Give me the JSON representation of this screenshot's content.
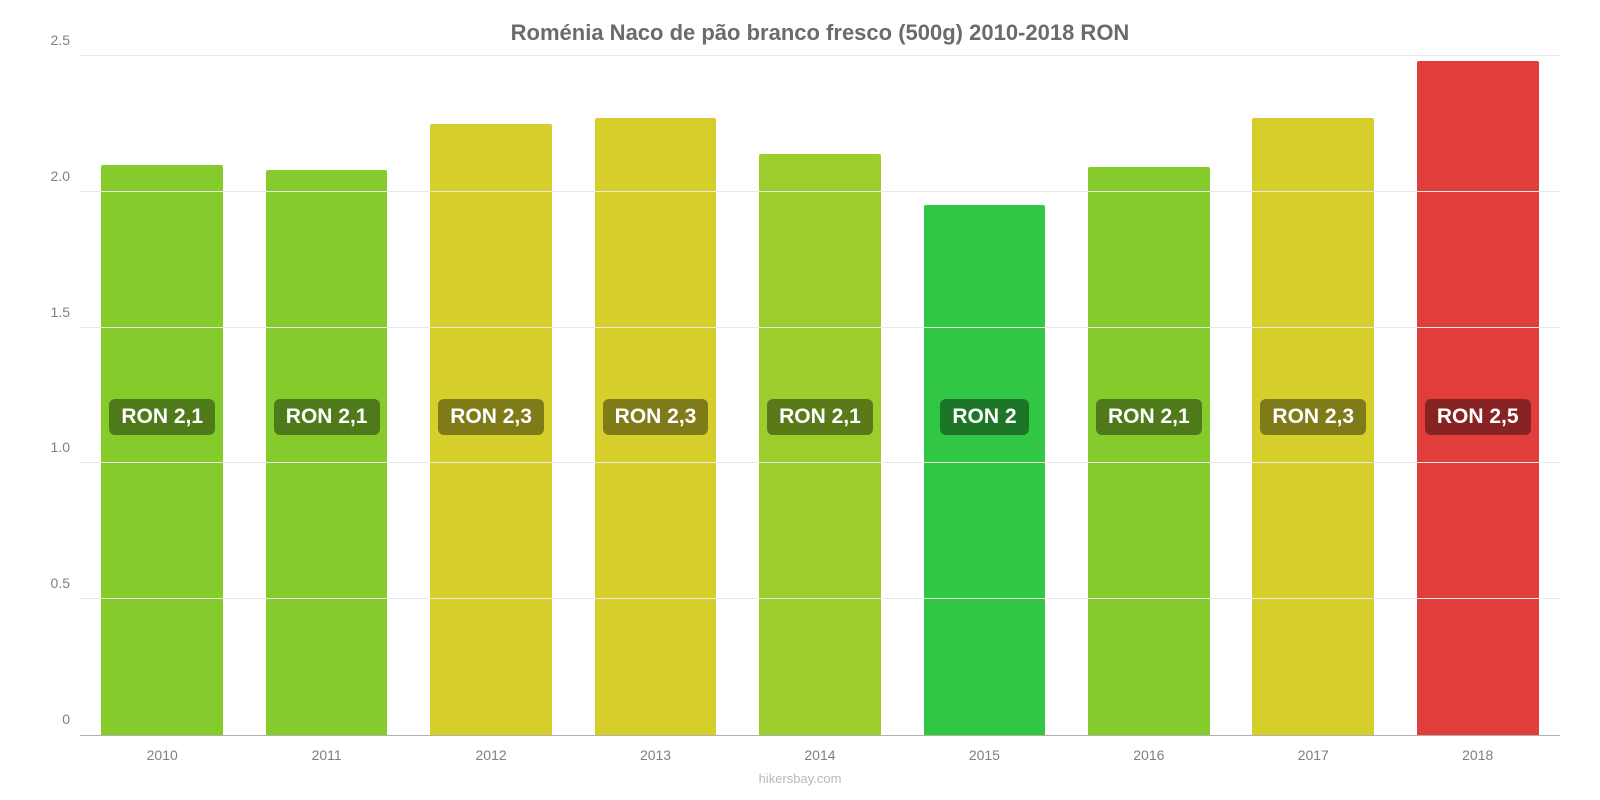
{
  "chart": {
    "type": "bar",
    "title": "Roménia Naco de pão branco fresco (500g) 2010-2018 RON",
    "title_fontsize": 22,
    "title_color": "#6b6b6b",
    "background_color": "#ffffff",
    "grid_color": "#e8e8e8",
    "axis_color": "#b0b0b0",
    "tick_label_color": "#808080",
    "tick_label_fontsize": 14,
    "ylim": [
      0,
      2.5
    ],
    "y_ticks": [
      0,
      0.5,
      1.0,
      1.5,
      2.0,
      2.5
    ],
    "y_tick_labels": [
      "0",
      "0.5",
      "1.0",
      "1.5",
      "2.0",
      "2.5"
    ],
    "bar_width_pct": 74,
    "bar_label_fontsize": 21,
    "bar_label_y_value": 1.17,
    "categories": [
      "2010",
      "2011",
      "2012",
      "2013",
      "2014",
      "2015",
      "2016",
      "2017",
      "2018"
    ],
    "values": [
      2.1,
      2.08,
      2.25,
      2.27,
      2.14,
      1.95,
      2.09,
      2.27,
      2.48
    ],
    "bar_colors": [
      "#86cb2c",
      "#86cb2c",
      "#d6ce2a",
      "#d6ce2a",
      "#9bce2d",
      "#31c643",
      "#86cb2c",
      "#d6ce2a",
      "#e13d3a"
    ],
    "bar_labels": [
      "RON 2,1",
      "RON 2,1",
      "RON 2,3",
      "RON 2,3",
      "RON 2,1",
      "RON 2",
      "RON 2,1",
      "RON 2,3",
      "RON 2,5"
    ],
    "bar_label_bg_colors": [
      "#4e7a1a",
      "#4e7a1a",
      "#807b19",
      "#807b19",
      "#5a7a1a",
      "#1d7628",
      "#4e7a1a",
      "#807b19",
      "#872423"
    ],
    "attribution": "hikersbay.com",
    "attribution_color": "#b8b8b8",
    "attribution_fontsize": 13
  }
}
